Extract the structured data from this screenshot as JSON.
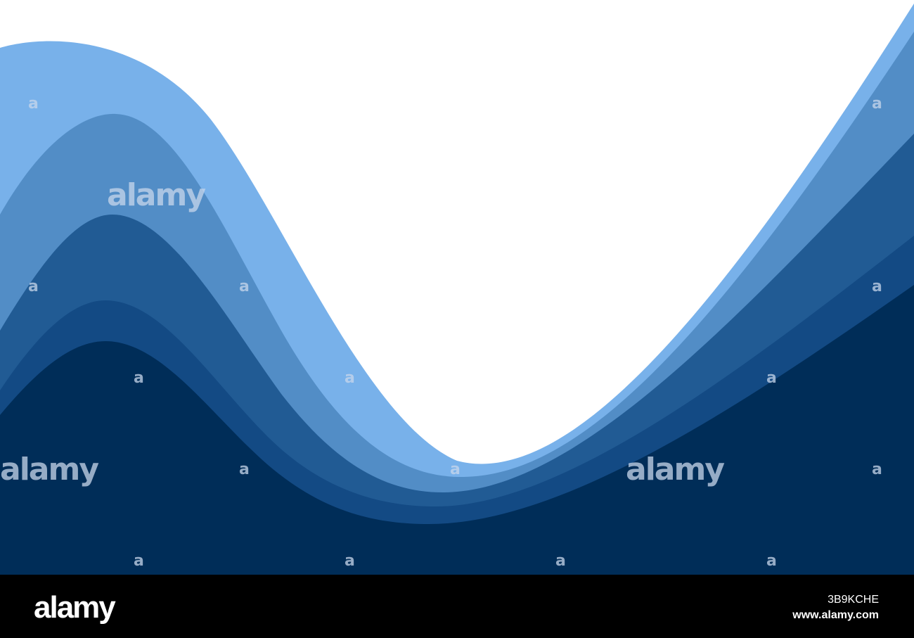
{
  "watermark": "alamy",
  "watermark_small": "a",
  "footer": {
    "logo": "alamy",
    "image_id": "3B9KCHE",
    "url": "www.alamy.com"
  }
}
